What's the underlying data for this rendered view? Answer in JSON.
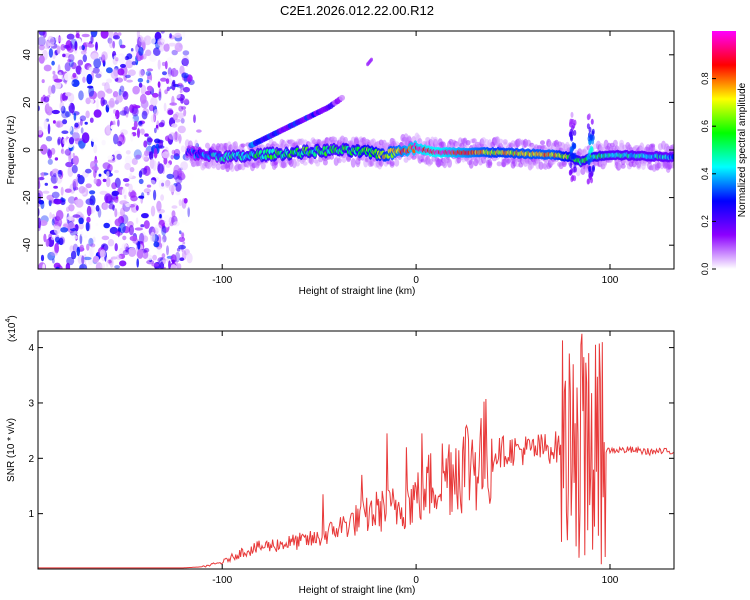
{
  "title": "C2E1.2026.012.22.00.R12",
  "chart_data": [
    {
      "type": "heatmap",
      "title": "C2E1.2026.012.22.00.R12",
      "xlabel": "Height of straight line (km)",
      "ylabel": "Frequency (Hz)",
      "xlim": [
        -195,
        133
      ],
      "ylim": [
        -50,
        50
      ],
      "xticks": [
        -100,
        0,
        100
      ],
      "xtick_labels": [
        "-100",
        "0",
        "100"
      ],
      "yticks": [
        -40,
        -20,
        0,
        20,
        40
      ],
      "ytick_labels": [
        "-40",
        "-20",
        "0",
        "20",
        "40"
      ],
      "colorbar": {
        "label": "Normalized spectral amplitude",
        "range": [
          0.0,
          1.0
        ],
        "ticks": [
          0.0,
          0.2,
          0.4,
          0.6,
          0.8
        ],
        "tick_labels": [
          "0.0",
          "0.2",
          "0.4",
          "0.6",
          "0.8"
        ],
        "colors": [
          "#ffffff",
          "#8c00ff",
          "#0000ff",
          "#00ffff",
          "#00ff00",
          "#ffff00",
          "#ff0000",
          "#ff00ff"
        ]
      },
      "noise_region_x": [
        -195,
        -118
      ],
      "ridge": {
        "x": [
          -125,
          -110,
          -95,
          -80,
          -60,
          -40,
          -25,
          -15,
          -8,
          0,
          10,
          40,
          70,
          80,
          85,
          90,
          100,
          133
        ],
        "freq_hz": [
          0,
          -2,
          -3,
          -2,
          -1,
          0,
          -1,
          -2,
          0,
          1,
          -1,
          -1,
          -2,
          -3,
          -5,
          -3,
          -2,
          -3
        ],
        "amplitude": [
          0.15,
          0.35,
          0.45,
          0.5,
          0.55,
          0.5,
          0.6,
          0.7,
          0.8,
          0.9,
          0.95,
          0.7,
          0.75,
          0.6,
          0.5,
          0.55,
          0.45,
          0.4
        ]
      },
      "harmonic": {
        "x": [
          -85,
          -75,
          -65,
          -55,
          -45,
          -38
        ],
        "freq_hz": [
          2,
          6,
          10,
          14,
          18,
          22
        ],
        "amplitude": [
          0.35,
          0.3,
          0.3,
          0.3,
          0.25,
          0.1
        ]
      },
      "harmonic2_x": [
        -25,
        -23
      ],
      "harmonic2_freq_hz": [
        36,
        38
      ]
    },
    {
      "type": "line",
      "xlabel": "Height of straight line (km)",
      "ylabel": "SNR (10 * v/v)",
      "multiplier": "(x10^4)",
      "multiplier_base": "(x10",
      "multiplier_exp": "4",
      "multiplier_close": ")",
      "xlim": [
        -195,
        133
      ],
      "ylim": [
        0,
        4.3
      ],
      "xticks": [
        -100,
        0,
        100
      ],
      "xtick_labels": [
        "-100",
        "0",
        "100"
      ],
      "yticks": [
        1,
        2,
        3,
        4
      ],
      "ytick_labels": [
        "1",
        "2",
        "3",
        "4"
      ],
      "color": "#e83a3a",
      "envelope": {
        "x": [
          -195,
          -120,
          -110,
          -100,
          -90,
          -80,
          -70,
          -60,
          -50,
          -40,
          -30,
          -20,
          -10,
          0,
          10,
          20,
          30,
          40,
          50,
          60,
          70,
          75,
          80,
          84,
          86,
          88,
          90,
          92,
          94,
          96,
          100,
          110,
          120,
          133
        ],
        "y": [
          0.02,
          0.02,
          0.04,
          0.12,
          0.3,
          0.4,
          0.45,
          0.5,
          0.55,
          0.75,
          0.9,
          1.05,
          1.1,
          1.3,
          1.6,
          1.85,
          2.0,
          2.1,
          2.15,
          2.15,
          2.2,
          2.2,
          2.2,
          2.3,
          2.0,
          2.0,
          2.2,
          2.2,
          2.1,
          2.1,
          2.15,
          2.15,
          2.12,
          2.12
        ]
      },
      "spikes": [
        {
          "x": -48,
          "y": 1.35
        },
        {
          "x": -28,
          "y": 1.7
        },
        {
          "x": -15,
          "y": 2.45
        },
        {
          "x": -5,
          "y": 2.2
        },
        {
          "x": 3,
          "y": 2.45
        },
        {
          "x": 77,
          "y": 3.4
        },
        {
          "x": 81,
          "y": 3.7
        },
        {
          "x": 85.5,
          "y": 4.25
        },
        {
          "x": 87,
          "y": 0.25
        },
        {
          "x": 89,
          "y": 3.9
        },
        {
          "x": 91,
          "y": 0.35
        },
        {
          "x": 92.5,
          "y": 4.05
        },
        {
          "x": 94,
          "y": 0.6
        },
        {
          "x": 96,
          "y": 4.1
        }
      ]
    }
  ]
}
